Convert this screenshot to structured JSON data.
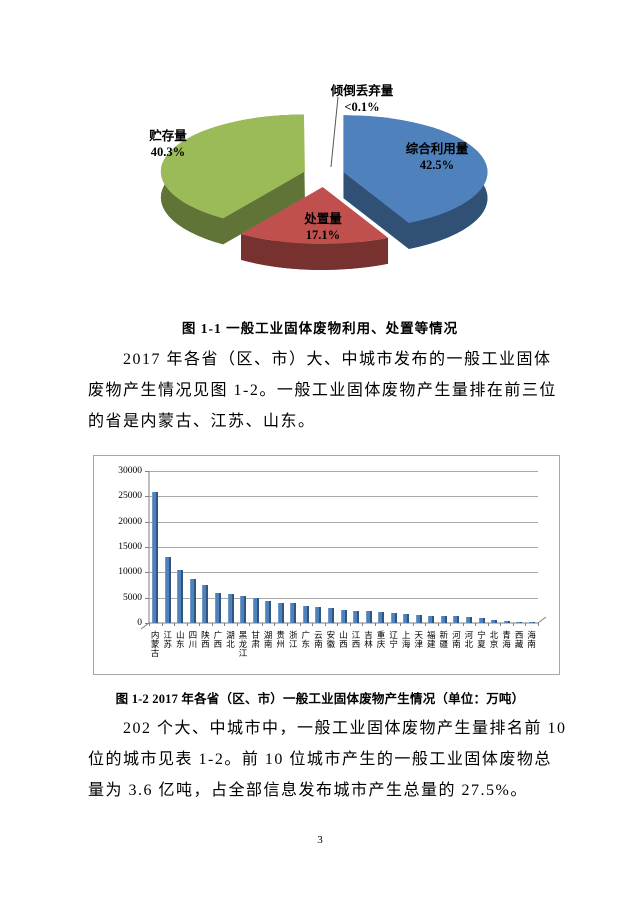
{
  "figure1": {
    "caption": "图 1-1 一般工业固体废物利用、处置等情况"
  },
  "paragraph1": {
    "line1": "2017 年各省（区、市）大、中城市发布的一般工业固体",
    "line2": "废物产生情况见图 1-2。一般工业固体废物产生量排在前三位",
    "line3": "的省是内蒙古、江苏、山东。"
  },
  "figure2": {
    "caption": "图 1-2 2017 年各省（区、市）一般工业固体废物产生情况（单位：万吨）"
  },
  "paragraph2": {
    "line1": "202 个大、中城市中，一般工业固体废物产生量排名前 10",
    "line2": "位的城市见表 1-2。前 10 位城市产生的一般工业固体废物总",
    "line3": "量为 3.6 亿吨，占全部信息发布城市产生总量的 27.5%。"
  },
  "page_number": "3",
  "chart_data": [
    {
      "type": "pie",
      "style": "3d-exploded",
      "title": "一般工业固体废物利用、处置等情况",
      "labels": [
        "综合利用量",
        "处置量",
        "贮存量",
        "倾倒丢弃量"
      ],
      "values": [
        42.5,
        17.1,
        40.3,
        0.1
      ],
      "value_labels": [
        "42.5%",
        "17.1%",
        "40.3%",
        "<0.1%"
      ],
      "colors": [
        "#4f81bd",
        "#c0504d",
        "#9bbb59",
        "#8064a2"
      ]
    },
    {
      "type": "bar",
      "title": "2017年各省（区、市）一般工业固体废物产生情况",
      "unit": "万吨",
      "categories": [
        "内蒙古",
        "江苏",
        "山东",
        "四川",
        "陕西",
        "广西",
        "湖北",
        "黑龙江",
        "甘肃",
        "湖南",
        "贵州",
        "浙江",
        "广东",
        "云南",
        "安徽",
        "山西",
        "江西",
        "吉林",
        "重庆",
        "辽宁",
        "上海",
        "天津",
        "福建",
        "新疆",
        "河南",
        "河北",
        "宁夏",
        "北京",
        "青海",
        "西藏",
        "海南"
      ],
      "values": [
        25800,
        13100,
        10400,
        8700,
        7500,
        6000,
        5800,
        5400,
        4900,
        4400,
        4000,
        3900,
        3400,
        3100,
        3000,
        2600,
        2400,
        2300,
        2100,
        1900,
        1800,
        1600,
        1400,
        1350,
        1300,
        1100,
        900,
        650,
        450,
        250,
        200
      ],
      "ylim": [
        0,
        30000
      ],
      "yticks": [
        0,
        5000,
        10000,
        15000,
        20000,
        25000,
        30000
      ],
      "bar_color": "#4f81bd",
      "grid_color": "#a9a9a9",
      "axis_color": "#7f7f7f",
      "legend_position": "none"
    }
  ]
}
